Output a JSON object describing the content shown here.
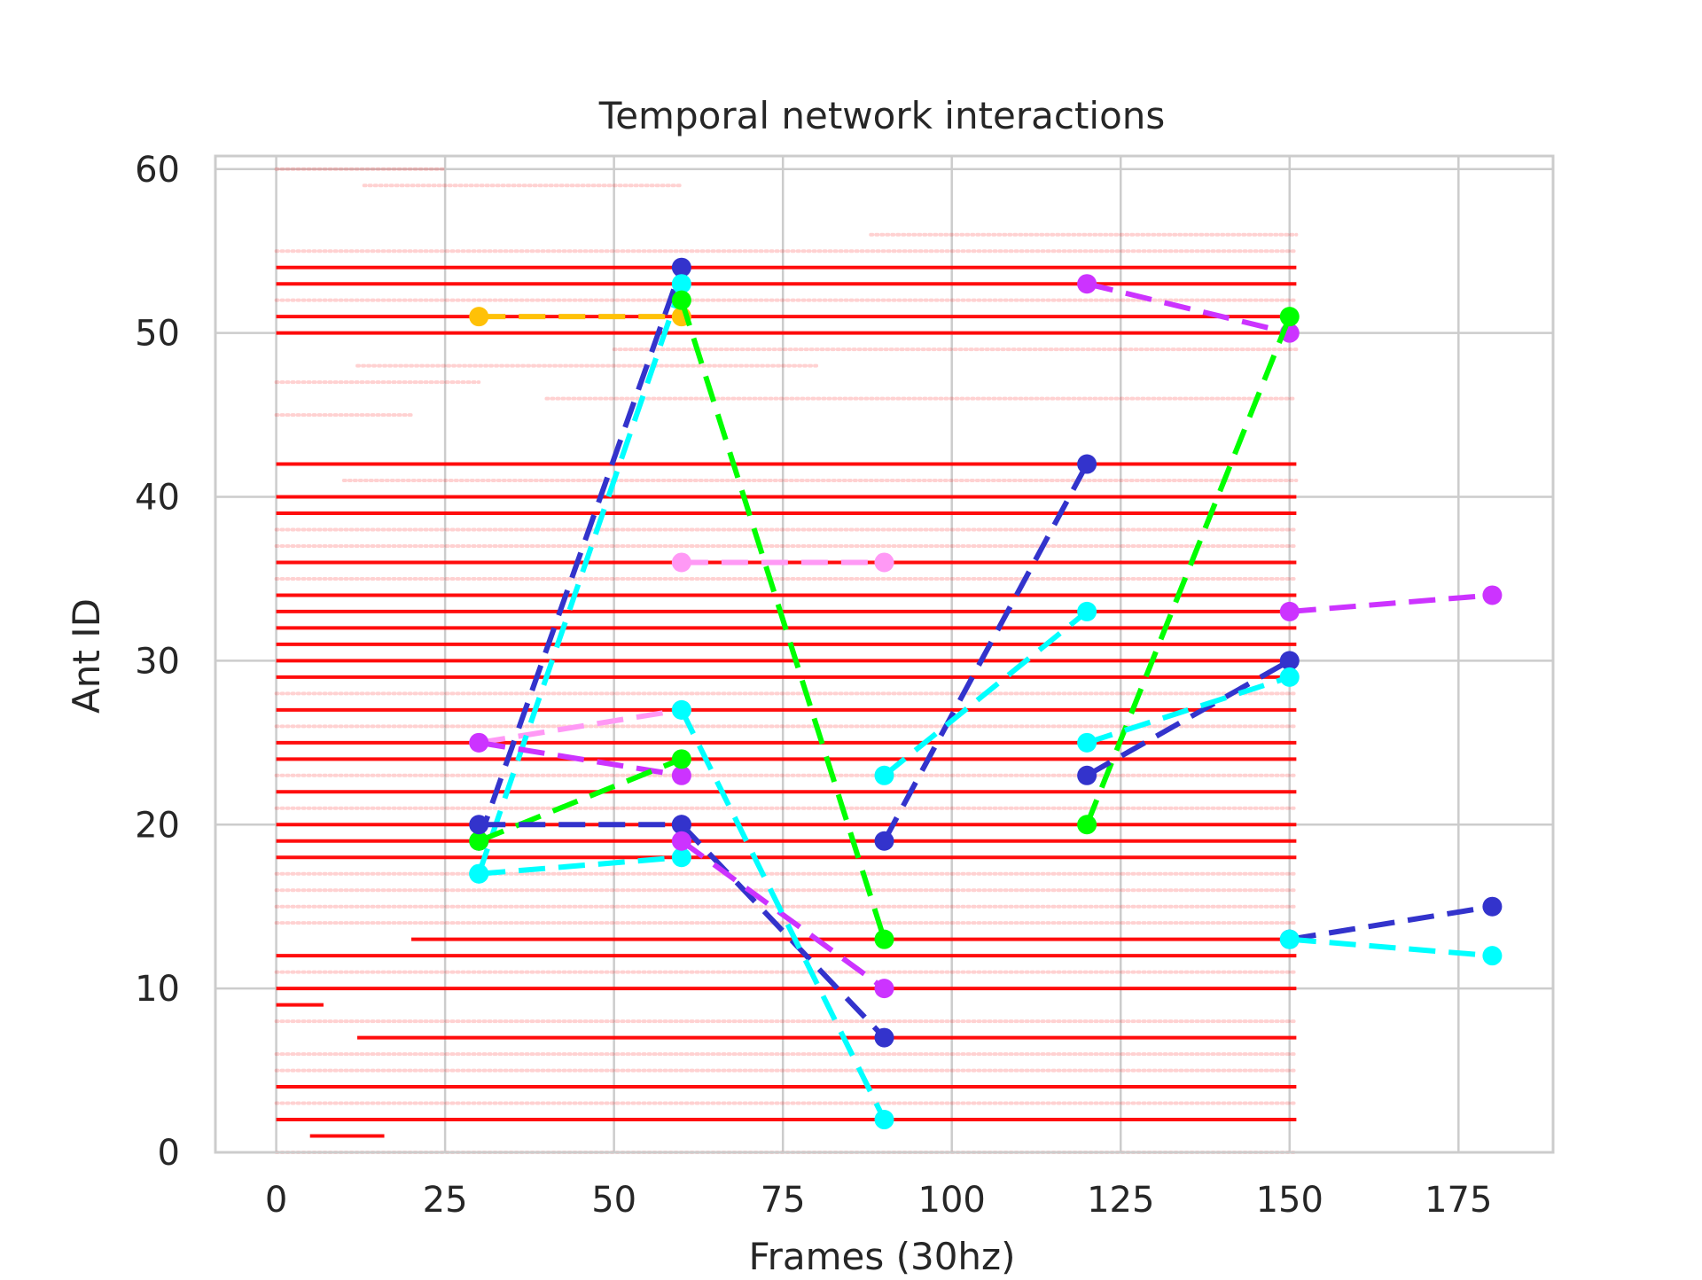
{
  "chart_data": {
    "type": "scatter",
    "title": "Temporal network interactions",
    "xlabel": "Frames (30hz)",
    "ylabel": "Ant ID",
    "xlim": [
      -9,
      189
    ],
    "ylim": [
      0,
      60.8
    ],
    "xticks": [
      0,
      25,
      50,
      75,
      100,
      125,
      150,
      175
    ],
    "yticks": [
      0,
      10,
      20,
      30,
      40,
      50,
      60
    ],
    "grid": true,
    "colors": {
      "background_lines": "#ff0000",
      "grid": "#cccccc",
      "axes_border": "#cccccc"
    },
    "background_interactions": {
      "solid_rows": [
        {
          "id": 54,
          "start": 0,
          "end": 151
        },
        {
          "id": 53,
          "start": 0,
          "end": 151
        },
        {
          "id": 51,
          "start": 0,
          "end": 151
        },
        {
          "id": 50,
          "start": 0,
          "end": 151
        },
        {
          "id": 42,
          "start": 0,
          "end": 151
        },
        {
          "id": 40,
          "start": 0,
          "end": 151
        },
        {
          "id": 39,
          "start": 0,
          "end": 151
        },
        {
          "id": 36,
          "start": 0,
          "end": 151
        },
        {
          "id": 34,
          "start": 0,
          "end": 151
        },
        {
          "id": 33,
          "start": 0,
          "end": 151
        },
        {
          "id": 32,
          "start": 0,
          "end": 151
        },
        {
          "id": 31,
          "start": 0,
          "end": 151
        },
        {
          "id": 30,
          "start": 0,
          "end": 151
        },
        {
          "id": 29,
          "start": 0,
          "end": 151
        },
        {
          "id": 27,
          "start": 0,
          "end": 151
        },
        {
          "id": 25,
          "start": 0,
          "end": 151
        },
        {
          "id": 24,
          "start": 0,
          "end": 151
        },
        {
          "id": 22,
          "start": 0,
          "end": 151
        },
        {
          "id": 20,
          "start": 0,
          "end": 151
        },
        {
          "id": 19,
          "start": 0,
          "end": 151
        },
        {
          "id": 18,
          "start": 0,
          "end": 151
        },
        {
          "id": 13,
          "start": 20,
          "end": 151
        },
        {
          "id": 12,
          "start": 0,
          "end": 151
        },
        {
          "id": 10,
          "start": 0,
          "end": 151
        },
        {
          "id": 7,
          "start": 12,
          "end": 151
        },
        {
          "id": 4,
          "start": 0,
          "end": 151
        },
        {
          "id": 2,
          "start": 0,
          "end": 151
        },
        {
          "id": 1,
          "start": 5,
          "end": 16
        },
        {
          "id": 9,
          "start": 0,
          "end": 7
        }
      ],
      "faint_rows": [
        {
          "id": 60,
          "start": 0,
          "end": 25
        },
        {
          "id": 59,
          "start": 13,
          "end": 60
        },
        {
          "id": 56,
          "start": 88,
          "end": 151
        },
        {
          "id": 55,
          "start": 0,
          "end": 151
        },
        {
          "id": 52,
          "start": 0,
          "end": 151
        },
        {
          "id": 49,
          "start": 50,
          "end": 151
        },
        {
          "id": 48,
          "start": 12,
          "end": 80
        },
        {
          "id": 47,
          "start": 0,
          "end": 30
        },
        {
          "id": 46,
          "start": 40,
          "end": 151
        },
        {
          "id": 45,
          "start": 0,
          "end": 20
        },
        {
          "id": 41,
          "start": 10,
          "end": 151
        },
        {
          "id": 38,
          "start": 0,
          "end": 151
        },
        {
          "id": 37,
          "start": 0,
          "end": 151
        },
        {
          "id": 35,
          "start": 0,
          "end": 151
        },
        {
          "id": 28,
          "start": 0,
          "end": 151
        },
        {
          "id": 26,
          "start": 0,
          "end": 151
        },
        {
          "id": 23,
          "start": 0,
          "end": 151
        },
        {
          "id": 21,
          "start": 0,
          "end": 151
        },
        {
          "id": 17,
          "start": 0,
          "end": 151
        },
        {
          "id": 16,
          "start": 0,
          "end": 151
        },
        {
          "id": 15,
          "start": 0,
          "end": 151
        },
        {
          "id": 14,
          "start": 0,
          "end": 151
        },
        {
          "id": 11,
          "start": 0,
          "end": 151
        },
        {
          "id": 8,
          "start": 0,
          "end": 151
        },
        {
          "id": 6,
          "start": 0,
          "end": 151
        },
        {
          "id": 5,
          "start": 0,
          "end": 151
        },
        {
          "id": 3,
          "start": 0,
          "end": 151
        },
        {
          "id": 0,
          "start": 0,
          "end": 151
        }
      ]
    },
    "series": [
      {
        "color": "#ffc107",
        "points": [
          [
            30,
            51
          ],
          [
            60,
            51
          ]
        ]
      },
      {
        "color": "#ff99f5",
        "points": [
          [
            60,
            36
          ],
          [
            90,
            36
          ]
        ]
      },
      {
        "color": "#ff99f5",
        "points": [
          [
            30,
            25
          ],
          [
            60,
            27
          ]
        ]
      },
      {
        "color": "#3333cc",
        "points": [
          [
            30,
            19
          ],
          [
            60,
            54
          ]
        ]
      },
      {
        "color": "#00ffff",
        "points": [
          [
            30,
            17
          ],
          [
            60,
            53
          ]
        ]
      },
      {
        "color": "#cc33ff",
        "points": [
          [
            30,
            25
          ],
          [
            60,
            23
          ]
        ]
      },
      {
        "color": "#00ff00",
        "points": [
          [
            30,
            19
          ],
          [
            60,
            24
          ]
        ]
      },
      {
        "color": "#3333cc",
        "points": [
          [
            30,
            20
          ],
          [
            60,
            20
          ]
        ]
      },
      {
        "color": "#00ffff",
        "points": [
          [
            30,
            17
          ],
          [
            60,
            18
          ]
        ]
      },
      {
        "color": "#00ff00",
        "points": [
          [
            60,
            52
          ],
          [
            90,
            13
          ]
        ]
      },
      {
        "color": "#3333cc",
        "points": [
          [
            60,
            20
          ],
          [
            90,
            7
          ]
        ]
      },
      {
        "color": "#cc33ff",
        "points": [
          [
            60,
            19
          ],
          [
            90,
            10
          ]
        ]
      },
      {
        "color": "#00ffff",
        "points": [
          [
            60,
            27
          ],
          [
            90,
            2
          ]
        ]
      },
      {
        "color": "#3333cc",
        "points": [
          [
            90,
            19
          ],
          [
            120,
            42
          ]
        ]
      },
      {
        "color": "#00ffff",
        "points": [
          [
            90,
            23
          ],
          [
            120,
            33
          ]
        ]
      },
      {
        "color": "#cc33ff",
        "points": [
          [
            120,
            53
          ],
          [
            150,
            50
          ]
        ]
      },
      {
        "color": "#00ff00",
        "points": [
          [
            120,
            20
          ],
          [
            150,
            51
          ]
        ]
      },
      {
        "color": "#3333cc",
        "points": [
          [
            120,
            23
          ],
          [
            150,
            30
          ]
        ]
      },
      {
        "color": "#00ffff",
        "points": [
          [
            120,
            25
          ],
          [
            150,
            29
          ]
        ]
      },
      {
        "color": "#cc33ff",
        "points": [
          [
            150,
            33
          ],
          [
            180,
            34
          ]
        ]
      },
      {
        "color": "#3333cc",
        "points": [
          [
            150,
            13
          ],
          [
            180,
            15
          ]
        ]
      },
      {
        "color": "#00ffff",
        "points": [
          [
            150,
            13
          ],
          [
            180,
            12
          ]
        ]
      }
    ]
  }
}
